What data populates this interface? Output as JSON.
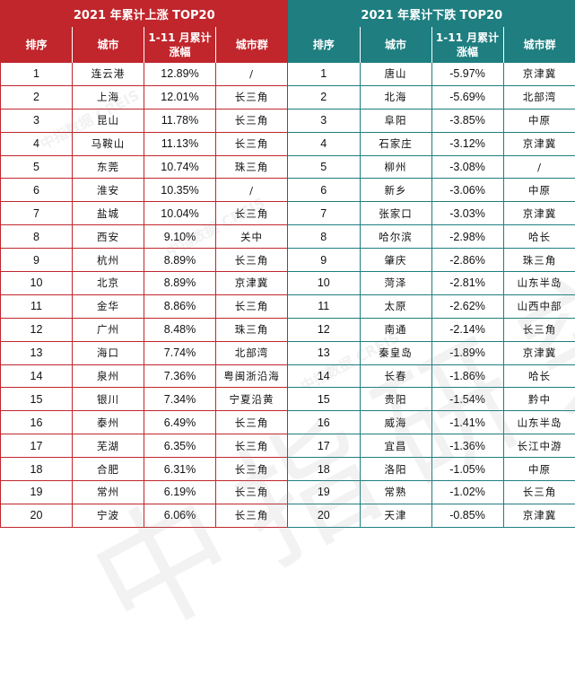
{
  "colors": {
    "rise": "#c0262c",
    "fall": "#1e7e80"
  },
  "rise": {
    "title": "2021 年累计上涨 TOP20",
    "headers": [
      "排序",
      "城市",
      "1-11 月累计\n涨幅",
      "城市群"
    ],
    "rows": [
      {
        "rank": "1",
        "city": "连云港",
        "change": "12.89%",
        "group": "/"
      },
      {
        "rank": "2",
        "city": "上海",
        "change": "12.01%",
        "group": "长三角"
      },
      {
        "rank": "3",
        "city": "昆山",
        "change": "11.78%",
        "group": "长三角"
      },
      {
        "rank": "4",
        "city": "马鞍山",
        "change": "11.13%",
        "group": "长三角"
      },
      {
        "rank": "5",
        "city": "东莞",
        "change": "10.74%",
        "group": "珠三角"
      },
      {
        "rank": "6",
        "city": "淮安",
        "change": "10.35%",
        "group": "/"
      },
      {
        "rank": "7",
        "city": "盐城",
        "change": "10.04%",
        "group": "长三角"
      },
      {
        "rank": "8",
        "city": "西安",
        "change": "9.10%",
        "group": "关中"
      },
      {
        "rank": "9",
        "city": "杭州",
        "change": "8.89%",
        "group": "长三角"
      },
      {
        "rank": "10",
        "city": "北京",
        "change": "8.89%",
        "group": "京津冀"
      },
      {
        "rank": "11",
        "city": "金华",
        "change": "8.86%",
        "group": "长三角"
      },
      {
        "rank": "12",
        "city": "广州",
        "change": "8.48%",
        "group": "珠三角"
      },
      {
        "rank": "13",
        "city": "海口",
        "change": "7.74%",
        "group": "北部湾"
      },
      {
        "rank": "14",
        "city": "泉州",
        "change": "7.36%",
        "group": "粤闽浙沿海"
      },
      {
        "rank": "15",
        "city": "银川",
        "change": "7.34%",
        "group": "宁夏沿黄"
      },
      {
        "rank": "16",
        "city": "泰州",
        "change": "6.49%",
        "group": "长三角"
      },
      {
        "rank": "17",
        "city": "芜湖",
        "change": "6.35%",
        "group": "长三角"
      },
      {
        "rank": "18",
        "city": "合肥",
        "change": "6.31%",
        "group": "长三角"
      },
      {
        "rank": "19",
        "city": "常州",
        "change": "6.19%",
        "group": "长三角"
      },
      {
        "rank": "20",
        "city": "宁波",
        "change": "6.06%",
        "group": "长三角"
      }
    ]
  },
  "fall": {
    "title": "2021 年累计下跌 TOP20",
    "headers": [
      "排序",
      "城市",
      "1-11 月累计\n涨幅",
      "城市群"
    ],
    "rows": [
      {
        "rank": "1",
        "city": "唐山",
        "change": "-5.97%",
        "group": "京津冀"
      },
      {
        "rank": "2",
        "city": "北海",
        "change": "-5.69%",
        "group": "北部湾"
      },
      {
        "rank": "3",
        "city": "阜阳",
        "change": "-3.85%",
        "group": "中原"
      },
      {
        "rank": "4",
        "city": "石家庄",
        "change": "-3.12%",
        "group": "京津冀"
      },
      {
        "rank": "5",
        "city": "柳州",
        "change": "-3.08%",
        "group": "/"
      },
      {
        "rank": "6",
        "city": "新乡",
        "change": "-3.06%",
        "group": "中原"
      },
      {
        "rank": "7",
        "city": "张家口",
        "change": "-3.03%",
        "group": "京津冀"
      },
      {
        "rank": "8",
        "city": "哈尔滨",
        "change": "-2.98%",
        "group": "哈长"
      },
      {
        "rank": "9",
        "city": "肇庆",
        "change": "-2.86%",
        "group": "珠三角"
      },
      {
        "rank": "10",
        "city": "菏泽",
        "change": "-2.81%",
        "group": "山东半岛"
      },
      {
        "rank": "11",
        "city": "太原",
        "change": "-2.62%",
        "group": "山西中部"
      },
      {
        "rank": "12",
        "city": "南通",
        "change": "-2.14%",
        "group": "长三角"
      },
      {
        "rank": "13",
        "city": "秦皇岛",
        "change": "-1.89%",
        "group": "京津冀"
      },
      {
        "rank": "14",
        "city": "长春",
        "change": "-1.86%",
        "group": "哈长"
      },
      {
        "rank": "15",
        "city": "贵阳",
        "change": "-1.54%",
        "group": "黔中"
      },
      {
        "rank": "16",
        "city": "威海",
        "change": "-1.41%",
        "group": "山东半岛"
      },
      {
        "rank": "17",
        "city": "宜昌",
        "change": "-1.36%",
        "group": "长江中游"
      },
      {
        "rank": "18",
        "city": "洛阳",
        "change": "-1.05%",
        "group": "中原"
      },
      {
        "rank": "19",
        "city": "常熟",
        "change": "-1.02%",
        "group": "长三角"
      },
      {
        "rank": "20",
        "city": "天津",
        "change": "-0.85%",
        "group": "京津冀"
      }
    ]
  },
  "watermark": {
    "small": "中指数据 CREIS",
    "large": "中指研究院"
  }
}
